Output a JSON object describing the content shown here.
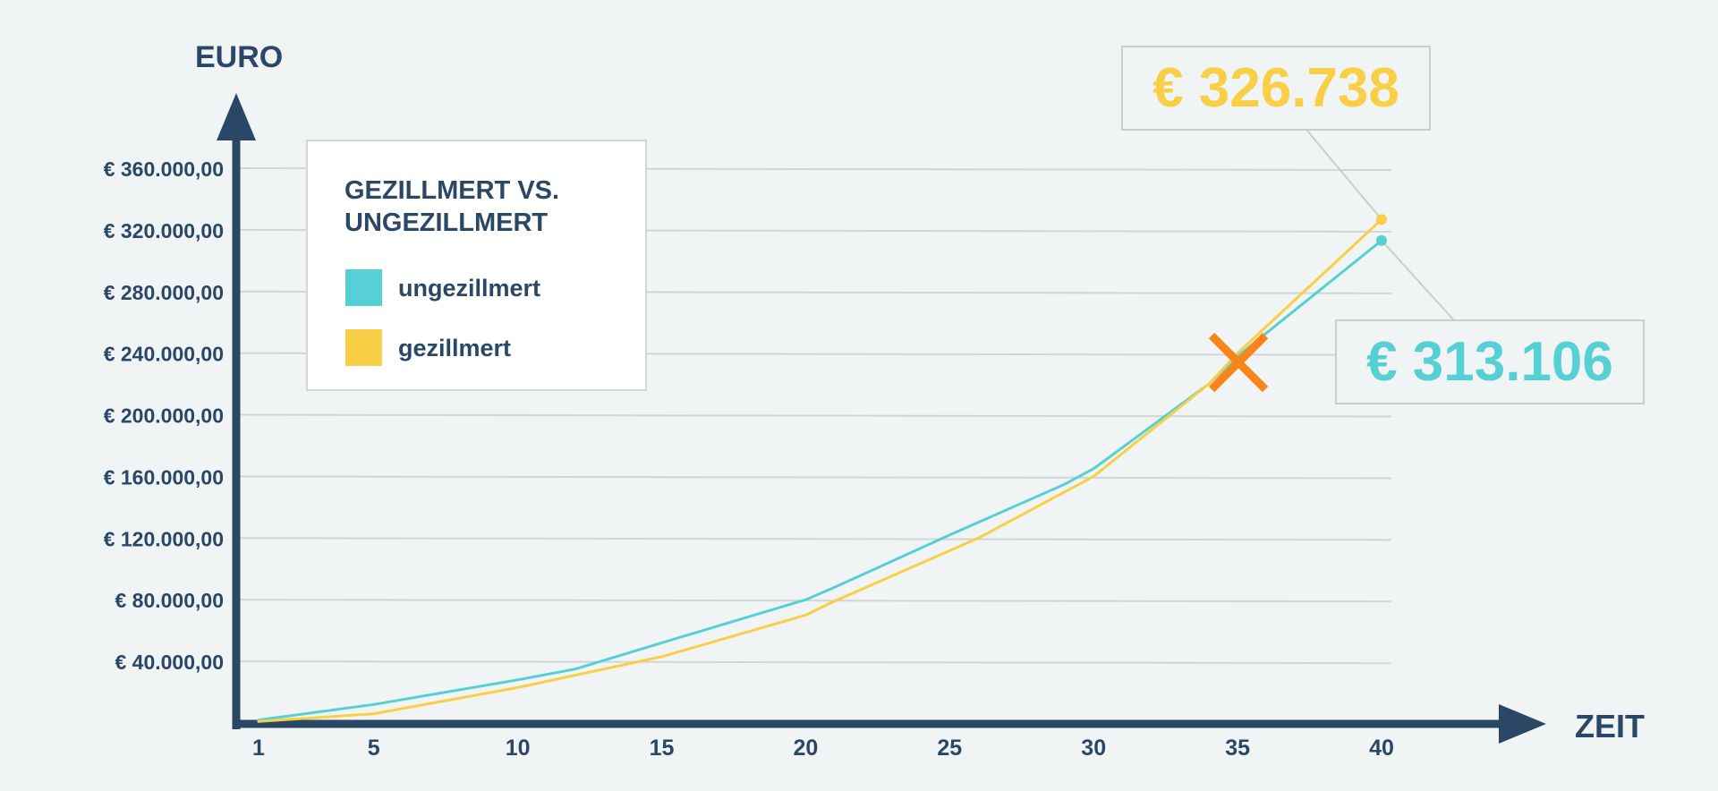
{
  "chart_data": {
    "type": "line",
    "ylabel": "EURO",
    "xlabel": "ZEIT",
    "xlim": [
      1,
      40
    ],
    "ylim": [
      0,
      360000
    ],
    "grid": true,
    "x_ticks": [
      1,
      5,
      10,
      15,
      20,
      25,
      30,
      35,
      40
    ],
    "y_ticks": [
      40000,
      80000,
      120000,
      160000,
      200000,
      240000,
      280000,
      320000,
      360000
    ],
    "y_tick_labels": [
      "€ 40.000,00",
      "€ 80.000,00",
      "€ 120.000,00",
      "€ 160.000,00",
      "€ 200.000,00",
      "€ 240.000,00",
      "€ 280.000,00",
      "€ 320.000,00",
      "€ 360.000,00"
    ],
    "legend": {
      "title_line1": "GEZILLMERT VS.",
      "title_line2": "UNGEZILLMERT",
      "placement": "top-left"
    },
    "series": [
      {
        "name": "ungezillmert",
        "color": "#56d0d4",
        "x": [
          1,
          5,
          10,
          12,
          15,
          20,
          21,
          25,
          29,
          30,
          34,
          35,
          40
        ],
        "y": [
          2000,
          12000,
          28000,
          35000,
          52000,
          80000,
          88000,
          122000,
          155000,
          165000,
          220000,
          238000,
          313106
        ]
      },
      {
        "name": "gezillmert",
        "color": "#f8cf46",
        "x": [
          1,
          5,
          10,
          15,
          20,
          21,
          26,
          30,
          34,
          35,
          40
        ],
        "y": [
          1000,
          6000,
          23000,
          43000,
          70000,
          79000,
          120000,
          160000,
          220000,
          240000,
          326738
        ]
      }
    ],
    "annotations": [
      {
        "series": "gezillmert",
        "x": 40,
        "y": 326738,
        "label": "€ 326.738",
        "color": "#f8cf46"
      },
      {
        "series": "ungezillmert",
        "x": 40,
        "y": 313106,
        "label": "€ 313.106",
        "color": "#56d0d4"
      }
    ],
    "marker": {
      "type": "cross",
      "x": 35,
      "y": 238000,
      "color": "#f7851a"
    },
    "colors": {
      "axis": "#2a4766",
      "grid": "#d2d5d7",
      "background": "#f1f4f5"
    }
  }
}
